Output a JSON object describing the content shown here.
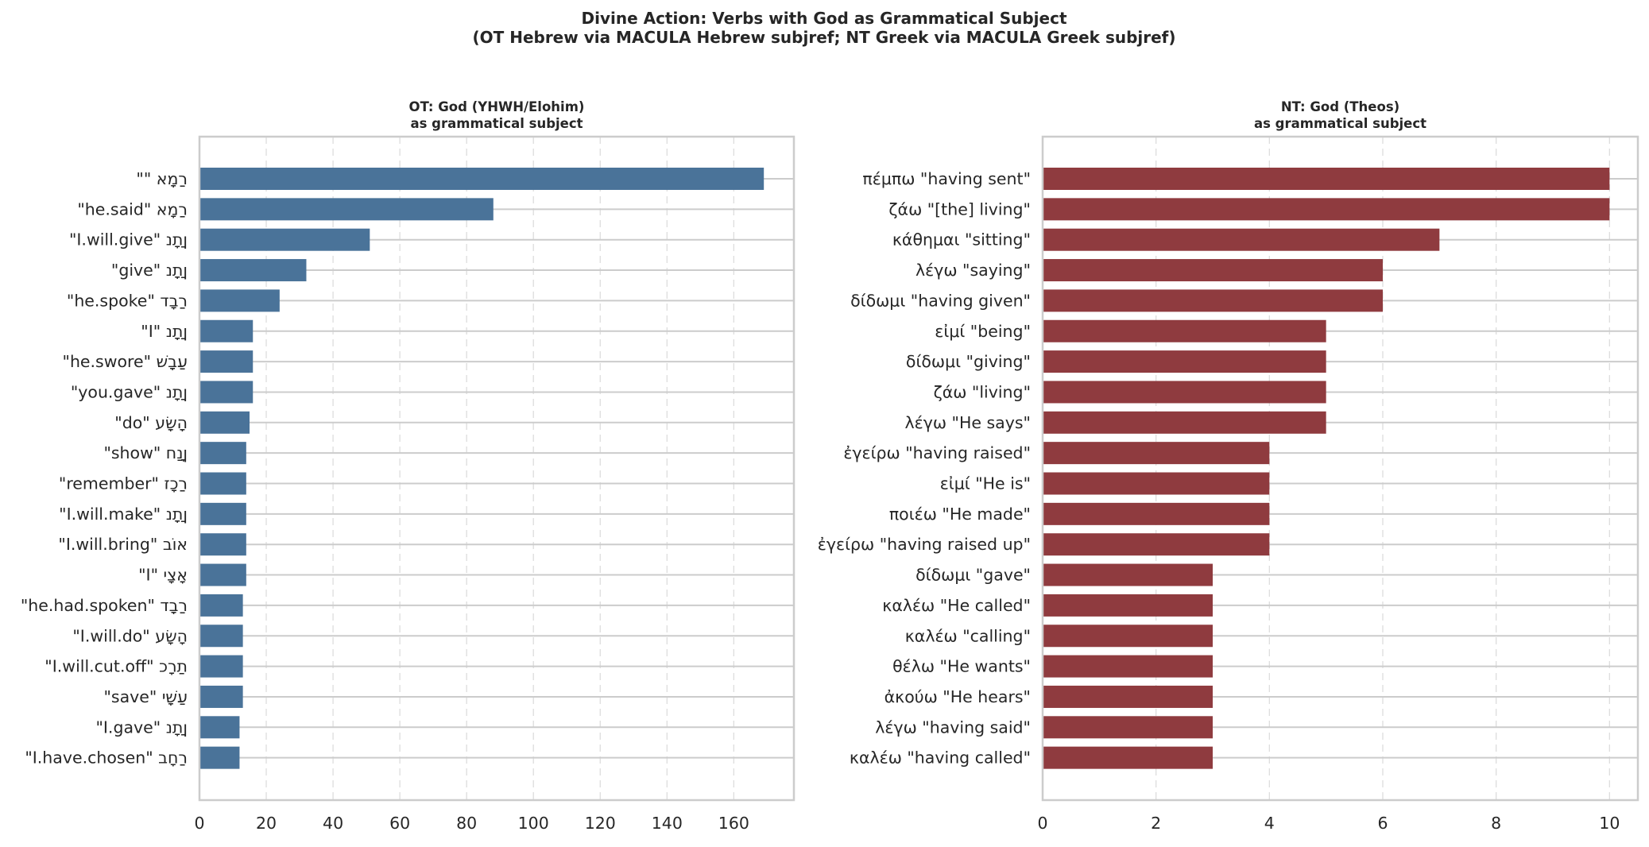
{
  "figure": {
    "title_line1": "Divine Action: Verbs with God as Grammatical Subject",
    "title_line2": "(OT Hebrew via MACULA Hebrew subjref; NT Greek via MACULA Greek subjref)"
  },
  "chart_data": [
    {
      "type": "bar",
      "orientation": "horizontal",
      "title": "OT: God (YHWH/Elohim)\nas grammatical subject",
      "title_line1": "OT: God (YHWH/Elohim)",
      "title_line2": "as grammatical subject",
      "color": "#4a7399",
      "xlim": [
        0,
        178
      ],
      "xticks": [
        0,
        20,
        40,
        60,
        80,
        100,
        120,
        140,
        160
      ],
      "grid": "x, dashed",
      "categories": [
        "רַמָא  \"\"",
        "רַמָא  \"he.said\"",
        "ןַתָנ  \"I.will.give\"",
        "ןַתָנ  \"give\"",
        "רַבָד  \"he.spoke\"",
        "ןַתָנ  \"I\"",
        "עַבָשׁ  \"he.swore\"",
        "ןַתָנ  \"you.gave\"",
        "הָשָׂע  \"do\"",
        "ןָנַח  \"show\"",
        "רַכָז  \"remember\"",
        "ןַתָנ  \"I.will.make\"",
        "אוֹב  \"I.will.bring\"",
        "אָצָי  \"I\"",
        "רַבָד  \"he.had.spoken\"",
        "הָשָׂע  \"I.will.do\"",
        "תַרָכ  \"I.will.cut.off\"",
        "עַשָׁי  \"save\"",
        "ןַתָנ  \"I.gave\"",
        "רַחָב  \"I.have.chosen\""
      ],
      "values": [
        169,
        88,
        51,
        32,
        24,
        16,
        16,
        16,
        15,
        14,
        14,
        14,
        14,
        14,
        13,
        13,
        13,
        13,
        12,
        12
      ]
    },
    {
      "type": "bar",
      "orientation": "horizontal",
      "title": "NT: God (Theos)\nas grammatical subject",
      "title_line1": "NT: God (Theos)",
      "title_line2": "as grammatical subject",
      "color": "#8f3b3f",
      "xlim": [
        0,
        10.5
      ],
      "xticks": [
        0,
        2,
        4,
        6,
        8,
        10
      ],
      "grid": "x, dashed",
      "categories": [
        "πέμπω  \"having sent\"",
        "ζάω  \"[the] living\"",
        "κάθημαι  \"sitting\"",
        "λέγω  \"saying\"",
        "δίδωμι  \"having given\"",
        "εἰμί  \"being\"",
        "δίδωμι  \"giving\"",
        "ζάω  \"living\"",
        "λέγω  \"He says\"",
        "ἐγείρω  \"having raised\"",
        "εἰμί  \"He is\"",
        "ποιέω  \"He made\"",
        "ἐγείρω  \"having raised up\"",
        "δίδωμι  \"gave\"",
        "καλέω  \"He called\"",
        "καλέω  \"calling\"",
        "θέλω  \"He wants\"",
        "ἀκούω  \"He hears\"",
        "λέγω  \"having said\"",
        "καλέω  \"having called\""
      ],
      "values": [
        10,
        10,
        7,
        6,
        6,
        5,
        5,
        5,
        5,
        4,
        4,
        4,
        4,
        3,
        3,
        3,
        3,
        3,
        3,
        3
      ]
    }
  ]
}
